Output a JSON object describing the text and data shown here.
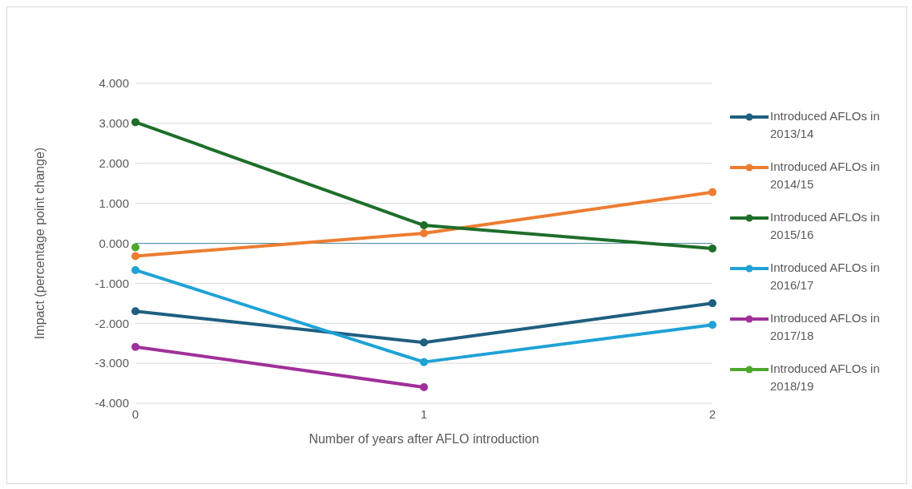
{
  "chart_data": {
    "type": "line",
    "xlabel": "Number of years after AFLO introduction",
    "ylabel": "Impact (percentage point change)",
    "categories": [
      "0",
      "1",
      "2"
    ],
    "series": [
      {
        "name": "Introduced AFLOs in 2013/14",
        "color": "#1f5f7f",
        "values": [
          -1.7,
          -2.48,
          -1.5
        ]
      },
      {
        "name": "Introduced AFLOs in 2014/15",
        "color": "#ed7d31",
        "values": [
          -0.32,
          0.25,
          1.28
        ]
      },
      {
        "name": "Introduced AFLOs in 2015/16",
        "color": "#1e6e2a",
        "values": [
          3.03,
          0.45,
          -0.13
        ]
      },
      {
        "name": "Introduced AFLOs in 2016/17",
        "color": "#1fa2d6",
        "values": [
          -0.67,
          -2.97,
          -2.04
        ]
      },
      {
        "name": "Introduced AFLOs in 2017/18",
        "color": "#a0309a",
        "values": [
          -2.59,
          -3.6,
          null
        ]
      },
      {
        "name": "Introduced AFLOs in 2018/19",
        "color": "#4ea72e",
        "values": [
          -0.1,
          null,
          null
        ]
      }
    ],
    "ylim": [
      -4,
      4
    ],
    "yticks": [
      {
        "value": -4,
        "label": "-4.000"
      },
      {
        "value": -3,
        "label": "-3.000"
      },
      {
        "value": -2,
        "label": "-2.000"
      },
      {
        "value": -1,
        "label": "-1.000"
      },
      {
        "value": 0,
        "label": "0.000"
      },
      {
        "value": 1,
        "label": "1.000"
      },
      {
        "value": 2,
        "label": "2.000"
      },
      {
        "value": 3,
        "label": "3.000"
      },
      {
        "value": 4,
        "label": "4.000"
      }
    ],
    "ref_lines": [
      {
        "axis": "y",
        "value": 0,
        "color": "#4f8a9a"
      }
    ],
    "grid": "y",
    "legend": "right",
    "marker": "circle",
    "line_style": "solid"
  }
}
